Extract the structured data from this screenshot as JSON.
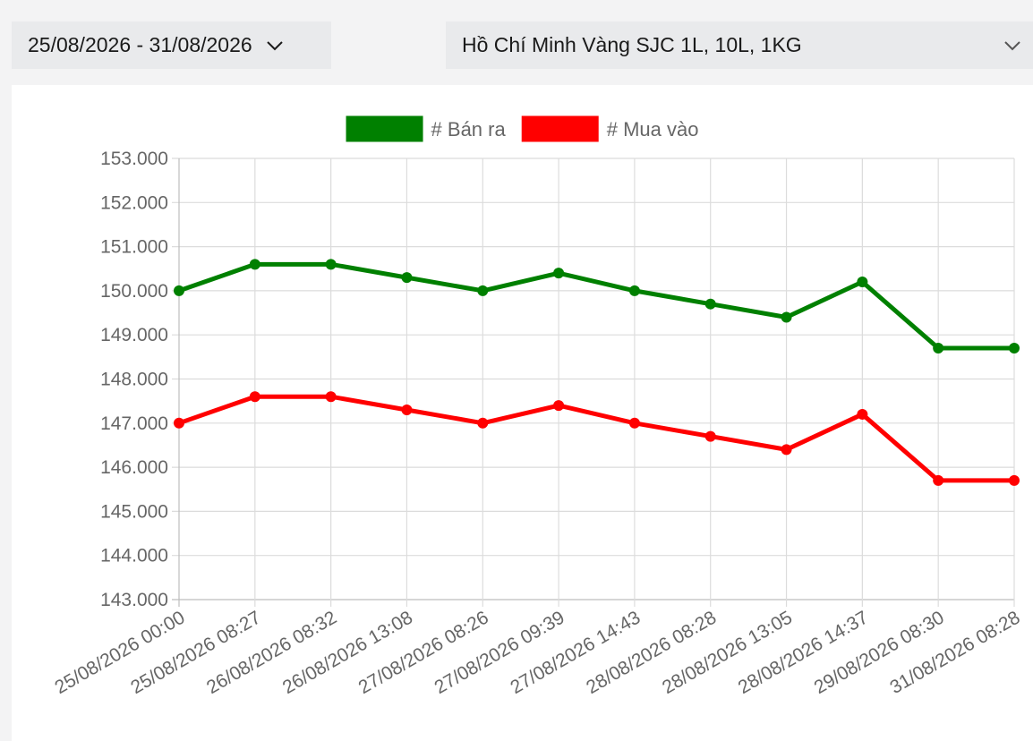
{
  "filters": {
    "date_range": "25/08/2026 - 31/08/2026",
    "product": "Hồ Chí Minh Vàng SJC 1L, 10L, 1KG"
  },
  "icons": {
    "date_dropdown": "chevron-down-icon",
    "product_dropdown": "chevron-down-icon"
  },
  "chart_data": {
    "type": "line",
    "x": [
      "25/08/2026 00:00",
      "25/08/2026 08:27",
      "26/08/2026 08:32",
      "26/08/2026 13:08",
      "27/08/2026 08:26",
      "27/08/2026 09:39",
      "27/08/2026 14:43",
      "28/08/2026 08:28",
      "28/08/2026 13:05",
      "28/08/2026 14:37",
      "29/08/2026 08:30",
      "31/08/2026 08:28"
    ],
    "series": [
      {
        "name": "# Bán ra",
        "color": "#008000",
        "values": [
          150.0,
          150.6,
          150.6,
          150.3,
          150.0,
          150.4,
          150.0,
          149.7,
          149.4,
          150.2,
          148.7,
          148.7
        ]
      },
      {
        "name": "# Mua vào",
        "color": "#ff0000",
        "values": [
          147.0,
          147.6,
          147.6,
          147.3,
          147.0,
          147.4,
          147.0,
          146.7,
          146.4,
          147.2,
          145.7,
          145.7
        ]
      }
    ],
    "yticks": [
      "143.000",
      "144.000",
      "145.000",
      "146.000",
      "147.000",
      "148.000",
      "149.000",
      "150.000",
      "151.000",
      "152.000",
      "153.000"
    ],
    "ylim": [
      143,
      153
    ],
    "grid": true,
    "legend_position": "top-center"
  }
}
